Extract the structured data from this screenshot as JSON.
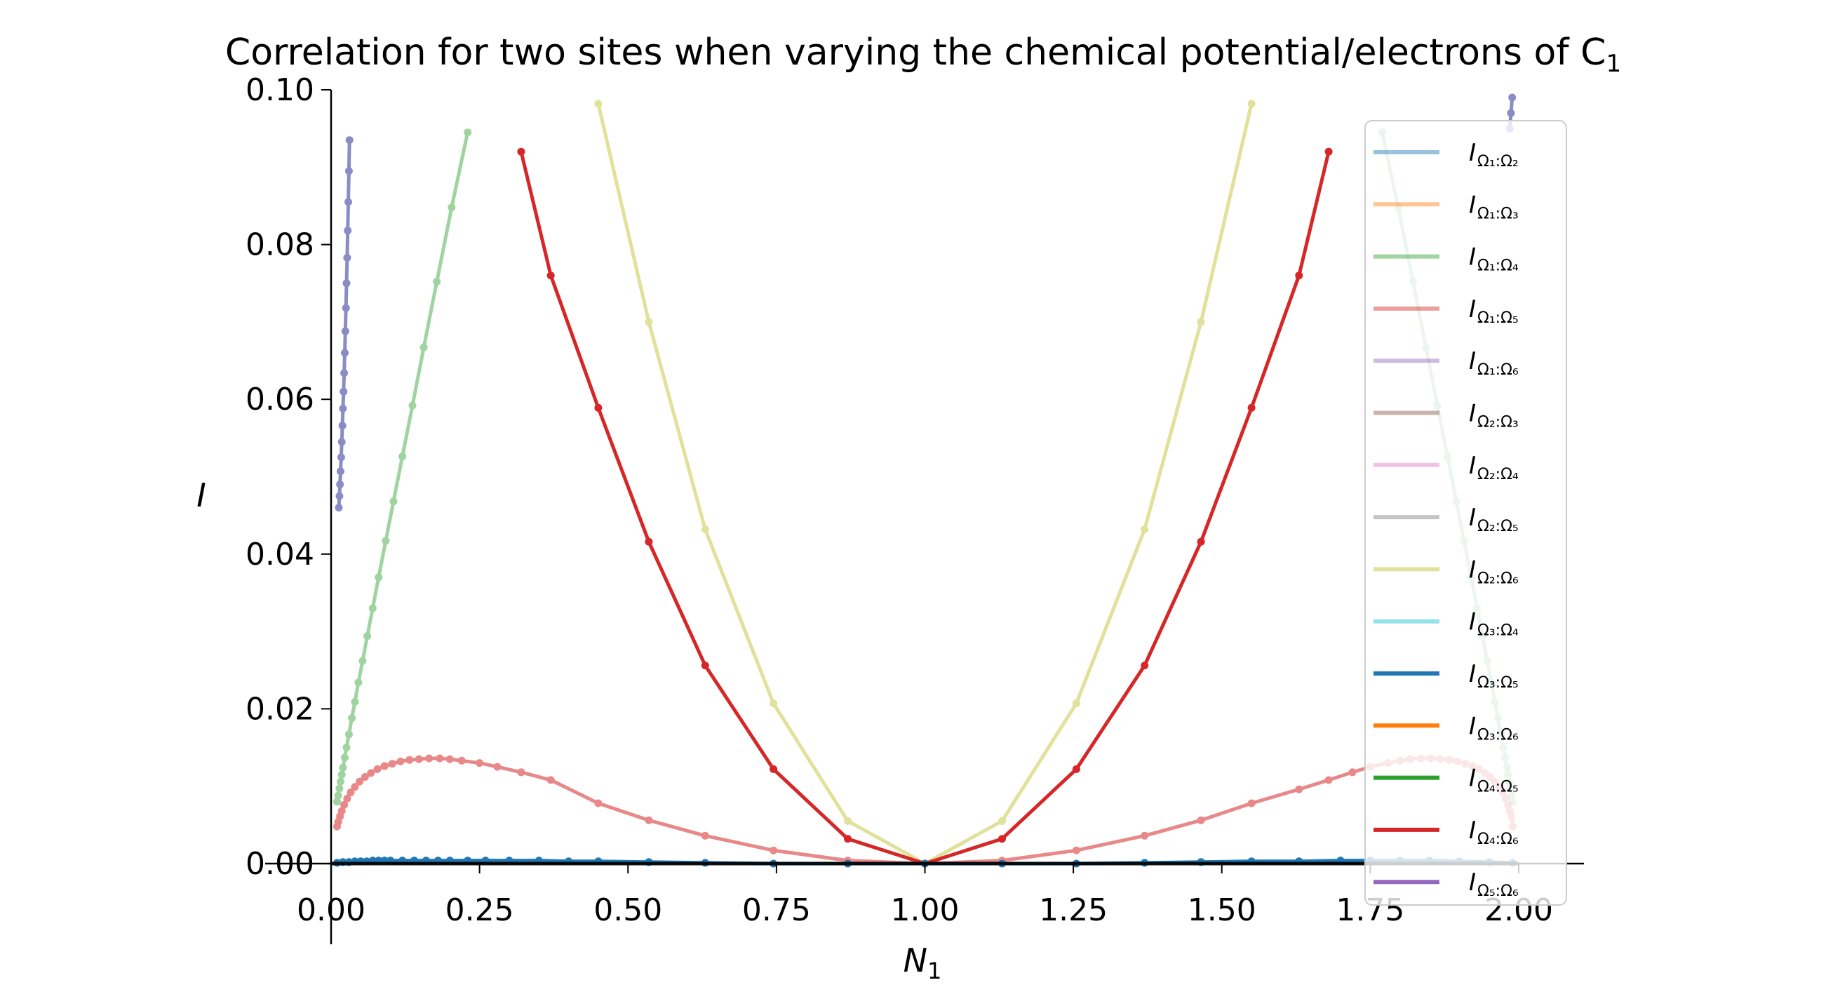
{
  "chart_data": {
    "type": "line",
    "title": "Correlation for two sites when varying the chemical potential/electrons of C",
    "title_subscript": "1",
    "xlabel": "N",
    "xlabel_subscript": "1",
    "ylabel": "I",
    "xlim": [
      0.0,
      2.0
    ],
    "ylim": [
      0.0,
      0.1
    ],
    "x_ticks": [
      "0.00",
      "0.25",
      "0.50",
      "0.75",
      "1.00",
      "1.25",
      "1.50",
      "1.75",
      "2.00"
    ],
    "y_ticks": [
      "0.00",
      "0.02",
      "0.04",
      "0.06",
      "0.08",
      "0.10"
    ],
    "grid": false,
    "legend_position": "right",
    "legend": [
      {
        "label": "I",
        "sub": "Ω₁:Ω₂",
        "color": "#1f77b4",
        "alpha": 0.45
      },
      {
        "label": "I",
        "sub": "Ω₁:Ω₃",
        "color": "#ff7f0e",
        "alpha": 0.45
      },
      {
        "label": "I",
        "sub": "Ω₁:Ω₄",
        "color": "#2ca02c",
        "alpha": 0.45
      },
      {
        "label": "I",
        "sub": "Ω₁:Ω₅",
        "color": "#d62728",
        "alpha": 0.45
      },
      {
        "label": "I",
        "sub": "Ω₁:Ω₆",
        "color": "#9467bd",
        "alpha": 0.45
      },
      {
        "label": "I",
        "sub": "Ω₂:Ω₃",
        "color": "#8c564b",
        "alpha": 0.45
      },
      {
        "label": "I",
        "sub": "Ω₂:Ω₄",
        "color": "#e377c2",
        "alpha": 0.45
      },
      {
        "label": "I",
        "sub": "Ω₂:Ω₅",
        "color": "#7f7f7f",
        "alpha": 0.45
      },
      {
        "label": "I",
        "sub": "Ω₂:Ω₆",
        "color": "#bcbd22",
        "alpha": 0.45
      },
      {
        "label": "I",
        "sub": "Ω₃:Ω₄",
        "color": "#17becf",
        "alpha": 0.45
      },
      {
        "label": "I",
        "sub": "Ω₃:Ω₅",
        "color": "#1f77b4",
        "alpha": 1.0
      },
      {
        "label": "I",
        "sub": "Ω₃:Ω₆",
        "color": "#ff7f0e",
        "alpha": 1.0
      },
      {
        "label": "I",
        "sub": "Ω₄:Ω₅",
        "color": "#2ca02c",
        "alpha": 1.0
      },
      {
        "label": "I",
        "sub": "Ω₄:Ω₆",
        "color": "#d62728",
        "alpha": 1.0
      },
      {
        "label": "I",
        "sub": "Ω₅:Ω₆",
        "color": "#9467bd",
        "alpha": 1.0
      }
    ],
    "series": [
      {
        "color": "#2ca02c",
        "alpha": 0.45,
        "x": [
          0.01,
          0.012,
          0.014,
          0.016,
          0.018,
          0.02,
          0.023,
          0.026,
          0.03,
          0.035,
          0.04,
          0.046,
          0.053,
          0.061,
          0.07,
          0.08,
          0.092,
          0.105,
          0.12,
          0.137,
          0.156,
          0.178,
          0.203,
          0.23
        ],
        "y": [
          0.008,
          0.0088,
          0.0097,
          0.0106,
          0.0115,
          0.0124,
          0.0137,
          0.015,
          0.0167,
          0.0188,
          0.0209,
          0.0234,
          0.0262,
          0.0294,
          0.033,
          0.037,
          0.0417,
          0.0468,
          0.0526,
          0.0592,
          0.0667,
          0.0752,
          0.0848,
          0.0945
        ]
      },
      {
        "color": "#2ca02c",
        "alpha": 0.45,
        "x": [
          1.77,
          1.797,
          1.822,
          1.844,
          1.863,
          1.88,
          1.895,
          1.908,
          1.92,
          1.93,
          1.939,
          1.947,
          1.954,
          1.96,
          1.965,
          1.97,
          1.974,
          1.977,
          1.98,
          1.982,
          1.984,
          1.986,
          1.988,
          1.99
        ],
        "y": [
          0.0945,
          0.0848,
          0.0752,
          0.0667,
          0.0592,
          0.0526,
          0.0468,
          0.0417,
          0.037,
          0.033,
          0.0294,
          0.0262,
          0.0234,
          0.0209,
          0.0188,
          0.0167,
          0.015,
          0.0137,
          0.0124,
          0.0115,
          0.0106,
          0.0097,
          0.0088,
          0.008
        ]
      },
      {
        "color": "#d62728",
        "alpha": 0.55,
        "x": [
          0.01,
          0.012,
          0.015,
          0.018,
          0.022,
          0.027,
          0.033,
          0.04,
          0.048,
          0.057,
          0.067,
          0.078,
          0.09,
          0.103,
          0.117,
          0.132,
          0.148,
          0.165,
          0.183,
          0.2,
          0.22,
          0.25,
          0.28,
          0.32,
          0.37,
          0.45,
          0.535,
          0.63,
          0.745,
          0.87,
          1.0,
          1.13,
          1.255,
          1.37,
          1.465,
          1.55,
          1.63,
          1.68,
          1.72,
          1.75,
          1.78,
          1.8,
          1.817,
          1.835,
          1.852,
          1.868,
          1.883,
          1.897,
          1.91,
          1.922,
          1.933,
          1.943,
          1.952,
          1.96,
          1.967,
          1.973,
          1.978,
          1.982,
          1.985,
          1.988,
          1.99
        ],
        "y": [
          0.0048,
          0.0054,
          0.0061,
          0.0068,
          0.0076,
          0.0084,
          0.0092,
          0.0099,
          0.0106,
          0.0112,
          0.0117,
          0.0122,
          0.0126,
          0.0129,
          0.0132,
          0.0134,
          0.0135,
          0.0136,
          0.0136,
          0.0135,
          0.0133,
          0.013,
          0.0125,
          0.0118,
          0.0108,
          0.0078,
          0.0056,
          0.0036,
          0.0017,
          0.0004,
          0.0,
          0.0004,
          0.0017,
          0.0036,
          0.0056,
          0.0078,
          0.0096,
          0.0108,
          0.0118,
          0.0125,
          0.013,
          0.0133,
          0.0135,
          0.0136,
          0.0136,
          0.0135,
          0.0134,
          0.0132,
          0.0129,
          0.0126,
          0.0122,
          0.0117,
          0.0112,
          0.0106,
          0.0099,
          0.0092,
          0.0084,
          0.0076,
          0.0068,
          0.0061,
          0.0048
        ]
      },
      {
        "color": "#bcbd22",
        "alpha": 0.45,
        "x": [
          0.45,
          0.535,
          0.63,
          0.745,
          0.87,
          1.0,
          1.13,
          1.255,
          1.37,
          1.465,
          1.55
        ],
        "y": [
          0.0982,
          0.07,
          0.0432,
          0.0207,
          0.0055,
          0.0,
          0.0055,
          0.0207,
          0.0432,
          0.07,
          0.0982
        ]
      },
      {
        "color": "#d62728",
        "alpha": 1.0,
        "x": [
          0.32,
          0.37,
          0.45,
          0.535,
          0.63,
          0.745,
          0.87,
          1.0,
          1.13,
          1.255,
          1.37,
          1.465,
          1.55,
          1.63,
          1.68
        ],
        "y": [
          0.092,
          0.076,
          0.0589,
          0.0416,
          0.0256,
          0.0122,
          0.0032,
          0.0,
          0.0032,
          0.0122,
          0.0256,
          0.0416,
          0.0589,
          0.076,
          0.092
        ]
      },
      {
        "color": "#000080",
        "alpha": 0.45,
        "x": [
          0.013,
          0.014,
          0.015,
          0.016,
          0.017,
          0.018,
          0.019,
          0.02,
          0.021,
          0.022,
          0.023,
          0.024,
          0.025,
          0.026,
          0.027,
          0.028,
          0.029,
          0.03,
          0.031
        ],
        "y": [
          0.046,
          0.0475,
          0.049,
          0.0507,
          0.0525,
          0.0545,
          0.0566,
          0.0588,
          0.061,
          0.0634,
          0.066,
          0.0688,
          0.0718,
          0.075,
          0.0783,
          0.0818,
          0.0855,
          0.0895,
          0.0935
        ]
      },
      {
        "color": "#000080",
        "alpha": 0.45,
        "x": [
          1.985,
          1.987,
          1.989
        ],
        "y": [
          0.095,
          0.097,
          0.099
        ]
      },
      {
        "color": "#1f77b4",
        "alpha": 1.0,
        "x": [
          0.01,
          0.02,
          0.03,
          0.04,
          0.05,
          0.06,
          0.07,
          0.08,
          0.09,
          0.1,
          0.12,
          0.14,
          0.16,
          0.18,
          0.2,
          0.23,
          0.26,
          0.3,
          0.35,
          0.4,
          0.45,
          0.535,
          0.63,
          0.745,
          0.87,
          1.0,
          1.13,
          1.255,
          1.37,
          1.465,
          1.55,
          1.63,
          1.7,
          1.75,
          1.8,
          1.85,
          1.9,
          1.95,
          1.99
        ],
        "y": [
          0.0001,
          0.0002,
          0.0002,
          0.0003,
          0.0003,
          0.0003,
          0.0004,
          0.0004,
          0.0004,
          0.0004,
          0.0004,
          0.0004,
          0.0004,
          0.0004,
          0.0004,
          0.0004,
          0.0004,
          0.0004,
          0.0004,
          0.0003,
          0.0003,
          0.0002,
          0.0001,
          0.0,
          0.0,
          0.0,
          0.0,
          0.0,
          0.0001,
          0.0002,
          0.0003,
          0.0003,
          0.0004,
          0.0004,
          0.0004,
          0.0004,
          0.0003,
          0.0002,
          0.0001
        ]
      },
      {
        "color": "#000000",
        "alpha": 0.9,
        "x": [
          0.0,
          2.0
        ],
        "y": [
          0.0,
          0.0
        ]
      }
    ]
  }
}
